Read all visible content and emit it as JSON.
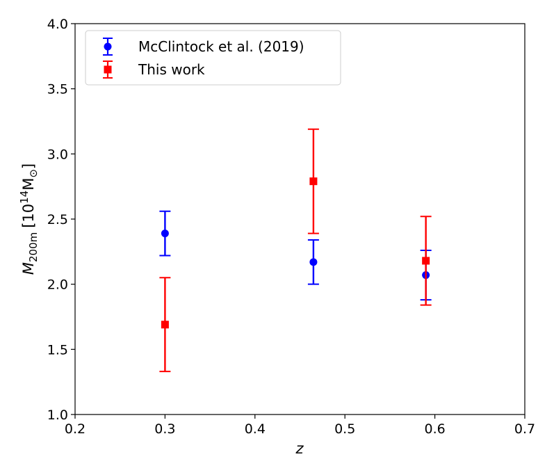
{
  "chart_data": {
    "type": "scatter",
    "xlabel": "z",
    "ylabel_main": "M",
    "ylabel_sub": "200m",
    "ylabel_unit_pre": "[10",
    "ylabel_unit_exp": "14",
    "ylabel_unit_post": "M",
    "ylabel_unit_sub": "⊙",
    "ylabel_unit_close": "]",
    "xlim": [
      0.2,
      0.7
    ],
    "ylim": [
      1.0,
      4.0
    ],
    "xticks": [
      "0.2",
      "0.3",
      "0.4",
      "0.5",
      "0.6",
      "0.7"
    ],
    "yticks": [
      "1.0",
      "1.5",
      "2.0",
      "2.5",
      "3.0",
      "3.5",
      "4.0"
    ],
    "grid": false,
    "legend_position": "top-left",
    "series": [
      {
        "name": "McClintock et al. (2019)",
        "color": "#0000ff",
        "marker": "circle",
        "x": [
          0.3,
          0.465,
          0.59
        ],
        "y": [
          2.39,
          2.17,
          2.07
        ],
        "yerr": [
          0.17,
          0.17,
          0.19
        ]
      },
      {
        "name": "This work",
        "color": "#ff0000",
        "marker": "square",
        "x": [
          0.3,
          0.465,
          0.59
        ],
        "y": [
          1.69,
          2.79,
          2.18
        ],
        "yerr": [
          0.36,
          0.4,
          0.34
        ]
      }
    ]
  }
}
